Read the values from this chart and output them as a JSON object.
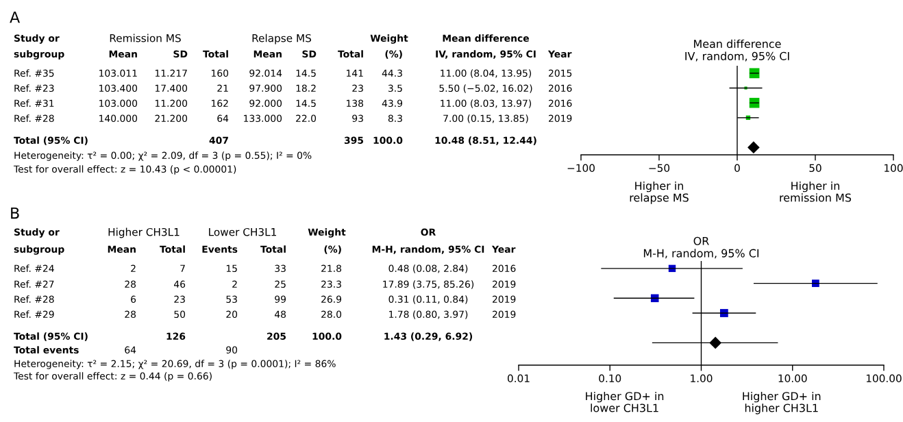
{
  "chart_data": [
    {
      "type": "other",
      "title": "A",
      "annotations": [
        "Study or\tRemission MS\tRelapse MS\tWeight\tMean difference",
        "subgroup\tMean\tSD\tTotal\tMean\tSD\tTotal\t(%)\tIV, random, 95% CI\tYear",
        "Ref. #35\t103.011\t11.217\t160\t92.014\t14.5\t141\t44.3\t11.00 (8.04, 13.95)\t2015",
        "Ref. #23\t103.400\t17.400\t21\t97.900\t18.2\t23\t3.5\t5.50 (−5.02, 16.02)\t2016",
        "Ref. #31\t103.000\t11.200\t162\t92.000\t14.5\t138\t43.9\t11.00 (8.03, 13.97)\t2016",
        "Ref. #28\t140.000\t21.200\t64\t133.000\t22.0\t93\t8.3\t7.00 (0.15, 13.85)\t2019",
        "Total (95% CI)\t\t\t407\t\t\t395\t100.0\t10.48 (8.51, 12.44)\t",
        "Heterogeneity: τ² = 0.00; χ² = 2.09, df = 3 (p = 0.55); I² = 0%",
        "Test for overall effect: z = 10.43 (p < 0.00001)"
      ]
    },
    {
      "type": "scatter",
      "orientation": "horizontal",
      "title": "Mean difference\nIV, random, 95% CI",
      "categories": [
        null,
        null,
        null,
        null,
        null,
        null
      ],
      "series": [
        {
          "type": "scatter",
          "marker": "square",
          "color": "#00c000",
          "values": [
            11.0,
            5.5,
            11.0,
            7.0,
            null,
            null
          ],
          "errors": [
            [
              8.04,
              13.95
            ],
            [
              -5.02,
              16.02
            ],
            [
              8.03,
              13.97
            ],
            [
              0.15,
              13.85
            ],
            null,
            null
          ],
          "sizes": [
            1,
            0.08,
            0.99,
            0.19,
            null,
            null
          ]
        },
        {
          "type": "scatter",
          "marker": "diamond",
          "color": "#000000",
          "values": [
            null,
            null,
            null,
            null,
            null,
            10.48
          ],
          "errors": [
            null,
            null,
            null,
            null,
            null,
            [
              8.51,
              12.44
            ]
          ]
        }
      ],
      "xlim": [
        -100,
        100
      ],
      "xticks": [
        {
          "value": -100,
          "label": "−100"
        },
        {
          "value": -50,
          "label": "−50"
        },
        0,
        50,
        100
      ],
      "ref_lines": [
        {
          "axis": "x",
          "value": 0,
          "color": "#000000"
        }
      ],
      "tick_labels": "x",
      "annotations": [
        "Higher in\nrelapse MS",
        "Higher in\nremission MS"
      ]
    },
    {
      "type": "other",
      "title": "B",
      "annotations": [
        "Study or\tHigher CH3L1\tLower CH3L1\tWeight\tOR",
        "subgroup\tMean\tTotal\tEvents\tTotal\t(%)\tM-H, random, 95% CI\tYear",
        "Ref. #24\t2\t7\t15\t33\t21.8\t0.48 (0.08, 2.84)\t2016",
        "Ref. #27\t28\t46\t2\t25\t23.3\t17.89 (3.75, 85.26)\t2019",
        "Ref. #28\t6\t23\t53\t99\t26.9\t0.31 (0.11, 0.84)\t2019",
        "Ref. #29\t28\t50\t20\t48\t28.0\t1.78 (0.80, 3.97)\t2019",
        "Total (95% CI)\t\t126\t\t205\t100.0\t1.43 (0.29, 6.92)\t",
        "Total events\t64\t\t90",
        "Heterogeneity: τ² = 2.15; χ² = 20.69, df = 3 (p = 0.0001); I² = 86%",
        "Test for overall effect: z = 0.44 (p = 0.66)"
      ]
    },
    {
      "type": "scatter",
      "orientation": "horizontal",
      "title": "OR\nM-H, random, 95% CI",
      "categories": [
        null,
        null,
        null,
        null,
        null,
        null,
        null
      ],
      "series": [
        {
          "type": "scatter",
          "marker": "square",
          "color": "#0000c8",
          "values": [
            0.48,
            17.89,
            0.31,
            1.78,
            null,
            null,
            null
          ],
          "errors": [
            [
              0.08,
              2.84
            ],
            [
              3.75,
              85.26
            ],
            [
              0.11,
              0.84
            ],
            [
              0.8,
              3.97
            ],
            null,
            null,
            null
          ],
          "sizes": [
            0.78,
            0.83,
            0.96,
            1,
            null,
            null,
            null
          ]
        },
        {
          "type": "scatter",
          "marker": "diamond",
          "color": "#000000",
          "values": [
            null,
            null,
            null,
            null,
            null,
            1.43,
            null
          ],
          "errors": [
            null,
            null,
            null,
            null,
            null,
            [
              0.29,
              6.92
            ],
            null
          ]
        }
      ],
      "log": "x",
      "xlim": [
        0.01,
        100
      ],
      "xticks": [
        {
          "value": 0.01,
          "label": "0.01"
        },
        {
          "value": 0.1,
          "label": "0.10"
        },
        {
          "value": 1,
          "label": "1.00"
        },
        {
          "value": 10,
          "label": "10.00"
        },
        {
          "value": 100,
          "label": "100.00"
        }
      ],
      "ref_lines": [
        {
          "axis": "x",
          "value": 1,
          "color": "#000000"
        }
      ],
      "tick_labels": "x",
      "annotations": [
        "Higher GD+ in\nlower CH3L1",
        "Higher GD+ in\nhigher CH3L1"
      ]
    }
  ]
}
